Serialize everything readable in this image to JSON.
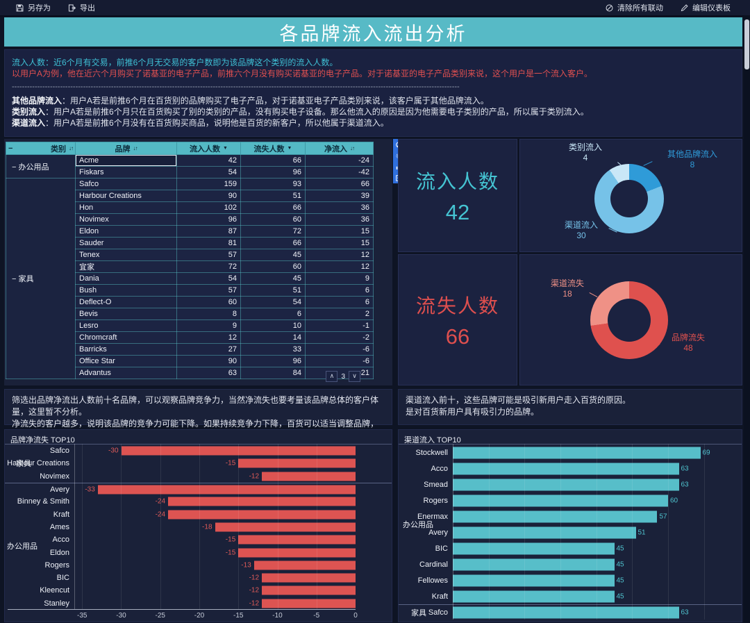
{
  "toolbar": {
    "save_as": "另存为",
    "export": "导出",
    "clear_linkage": "清除所有联动",
    "edit_dashboard": "编辑仪表板"
  },
  "title": "各品牌流入流出分析",
  "notes_top": {
    "line1": "流入人数：近6个月有交易，前推6个月无交易的客户数即为该品牌这个类别的流入人数。",
    "line2": "以用户A为例，他在近六个月购买了诺基亚的电子产品，前推六个月没有购买诺基亚的电子产品。对于诺基亚的电子产品类别来说，这个用户是一个流入客户。",
    "divider": "--------------------------------------------------------------------------------------------------------------------------------------------------------------------------------",
    "items": [
      {
        "label": "其他品牌流入",
        "text": "：用户A若是前推6个月在百货别的品牌购买了电子产品，对于诺基亚电子产品类别来说，该客户属于其他品牌流入。"
      },
      {
        "label": "类别流入",
        "text": "：用户A若是前推6个月只在百货购买了别的类别的产品，没有购买电子设备。那么他流入的原因是因为他需要电子类别的产品，所以属于类别流入。"
      },
      {
        "label": "渠道流入",
        "text": "：用户A若是前推6个月没有在百货购买商品，说明他是百货的新客户，所以他属于渠道流入。"
      }
    ]
  },
  "table": {
    "headers": [
      "类别",
      "品牌",
      "流入人数",
      "流失人数",
      "净流入"
    ],
    "groups": [
      {
        "category": "办公用品",
        "rows": [
          [
            "Acme",
            42,
            66,
            -24
          ],
          [
            "Fiskars",
            54,
            96,
            -42
          ]
        ]
      },
      {
        "category": "家具",
        "rows": [
          [
            "Safco",
            159,
            93,
            66
          ],
          [
            "Harbour Creations",
            90,
            51,
            39
          ],
          [
            "Hon",
            102,
            66,
            36
          ],
          [
            "Novimex",
            96,
            60,
            36
          ],
          [
            "Eldon",
            87,
            72,
            15
          ],
          [
            "Sauder",
            81,
            66,
            15
          ],
          [
            "Tenex",
            57,
            45,
            12
          ],
          [
            "宜家",
            72,
            60,
            12
          ],
          [
            "Dania",
            54,
            45,
            9
          ],
          [
            "Bush",
            57,
            51,
            6
          ],
          [
            "Deflect-O",
            60,
            54,
            6
          ],
          [
            "Bevis",
            8,
            6,
            2
          ],
          [
            "Lesro",
            9,
            10,
            -1
          ],
          [
            "Chromcraft",
            12,
            14,
            -2
          ],
          [
            "Barricks",
            27,
            33,
            -6
          ],
          [
            "Office Star",
            90,
            96,
            -6
          ],
          [
            "Advantus",
            63,
            84,
            -21
          ]
        ]
      }
    ],
    "selected_cell": "Acme",
    "page": "3"
  },
  "widget_tools": [
    "clear-linkage",
    "settings",
    "chart-type",
    "select"
  ],
  "kpi_inflow": {
    "label": "流入人数",
    "value": "42"
  },
  "kpi_outflow": {
    "label": "流失人数",
    "value": "66"
  },
  "notes_bottom_left": {
    "line1": "筛选出品牌净流出人数前十名品牌，可以观察品牌竞争力，当然净流失也要考量该品牌总体的客户体量，这里暂不分析。",
    "line2": "净流失的客户越多，说明该品牌的竞争力可能下降。如果持续竞争力下降，百货可以适当调整品牌，更换更具竞争力的品牌。"
  },
  "notes_bottom_right": {
    "line1": "渠道流入前十，这些品牌可能是吸引新用户走入百货的原因。",
    "line2": "是对百货新用户具有吸引力的品牌。"
  },
  "chart_data": [
    {
      "type": "pie",
      "name": "inflow-composition-donut",
      "total": 42,
      "slices": [
        {
          "label": "其他品牌流入",
          "value": 8,
          "color": "#2f9bd8"
        },
        {
          "label": "渠道流入",
          "value": 30,
          "color": "#76c2e8"
        },
        {
          "label": "类别流入",
          "value": 4,
          "color": "#c9e7f7"
        }
      ]
    },
    {
      "type": "pie",
      "name": "outflow-composition-donut",
      "total": 66,
      "slices": [
        {
          "label": "品牌流失",
          "value": 48,
          "color": "#df514e"
        },
        {
          "label": "渠道流失",
          "value": 18,
          "color": "#ef9186"
        }
      ]
    },
    {
      "type": "bar",
      "title": "品牌净流失 TOP10",
      "orientation": "horizontal",
      "xlim": [
        -36,
        0
      ],
      "xticks": [
        -35,
        -30,
        -25,
        -20,
        -15,
        -10,
        -5,
        0
      ],
      "bar_color": "#dd5452",
      "groups": [
        {
          "name": "家具",
          "items": [
            [
              "Safco",
              -30
            ],
            [
              "Harbour Creations",
              -15
            ],
            [
              "Novimex",
              -12
            ]
          ]
        },
        {
          "name": "办公用品",
          "items": [
            [
              "Avery",
              -33
            ],
            [
              "Binney & Smith",
              -24
            ],
            [
              "Kraft",
              -24
            ],
            [
              "Ames",
              -18
            ],
            [
              "Acco",
              -15
            ],
            [
              "Eldon",
              -15
            ],
            [
              "Rogers",
              -13
            ],
            [
              "BIC",
              -12
            ],
            [
              "Kleencut",
              -12
            ],
            [
              "Stanley",
              -12
            ]
          ]
        }
      ]
    },
    {
      "type": "bar",
      "title": "渠道流入 TOP10",
      "orientation": "horizontal",
      "xlim": [
        0,
        78
      ],
      "grid_step": 10,
      "bar_color": "#57bec9",
      "groups": [
        {
          "name": "办公用品",
          "items": [
            [
              "Stockwell",
              69
            ],
            [
              "Acco",
              63
            ],
            [
              "Smead",
              63
            ],
            [
              "Rogers",
              60
            ],
            [
              "Enermax",
              57
            ],
            [
              "Avery",
              51
            ],
            [
              "BIC",
              45
            ],
            [
              "Cardinal",
              45
            ],
            [
              "Fellowes",
              45
            ],
            [
              "Kraft",
              45
            ]
          ]
        },
        {
          "name": "家具",
          "items": [
            [
              "Safco",
              63
            ]
          ]
        }
      ]
    }
  ]
}
